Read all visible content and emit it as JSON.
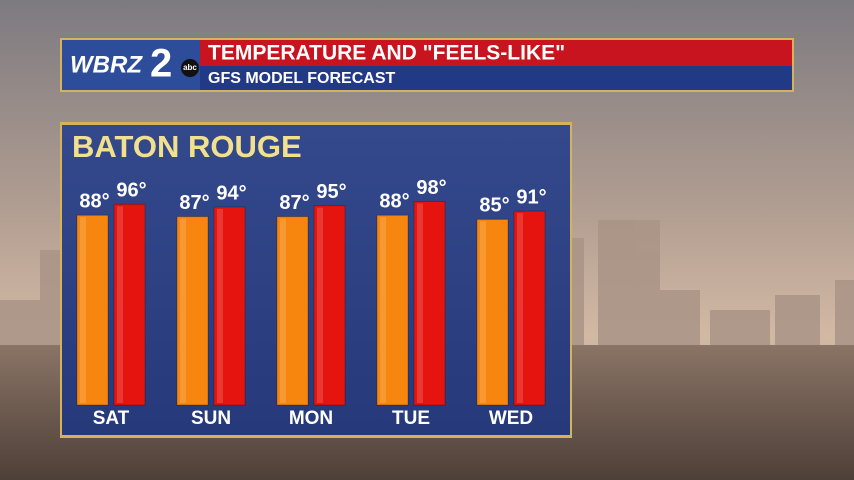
{
  "logo": {
    "station": "WBRZ",
    "channel": "2",
    "network": "abc"
  },
  "chart_data": {
    "type": "bar",
    "title": "TEMPERATURE AND \"FEELS-LIKE\"",
    "subtitle": "GFS MODEL FORECAST",
    "location": "BATON ROUGE",
    "categories": [
      "SAT",
      "SUN",
      "MON",
      "TUE",
      "WED"
    ],
    "ylim": [
      -50,
      100
    ],
    "series": [
      {
        "color": "#f7860f",
        "values": [
          88,
          87,
          87,
          88,
          85
        ],
        "value_labels": [
          "88°",
          "87°",
          "87°",
          "88°",
          "85°"
        ]
      },
      {
        "color": "#e5140f",
        "values": [
          96,
          94,
          95,
          98,
          91
        ],
        "value_labels": [
          "96°",
          "94°",
          "95°",
          "98°",
          "91°"
        ]
      }
    ]
  }
}
